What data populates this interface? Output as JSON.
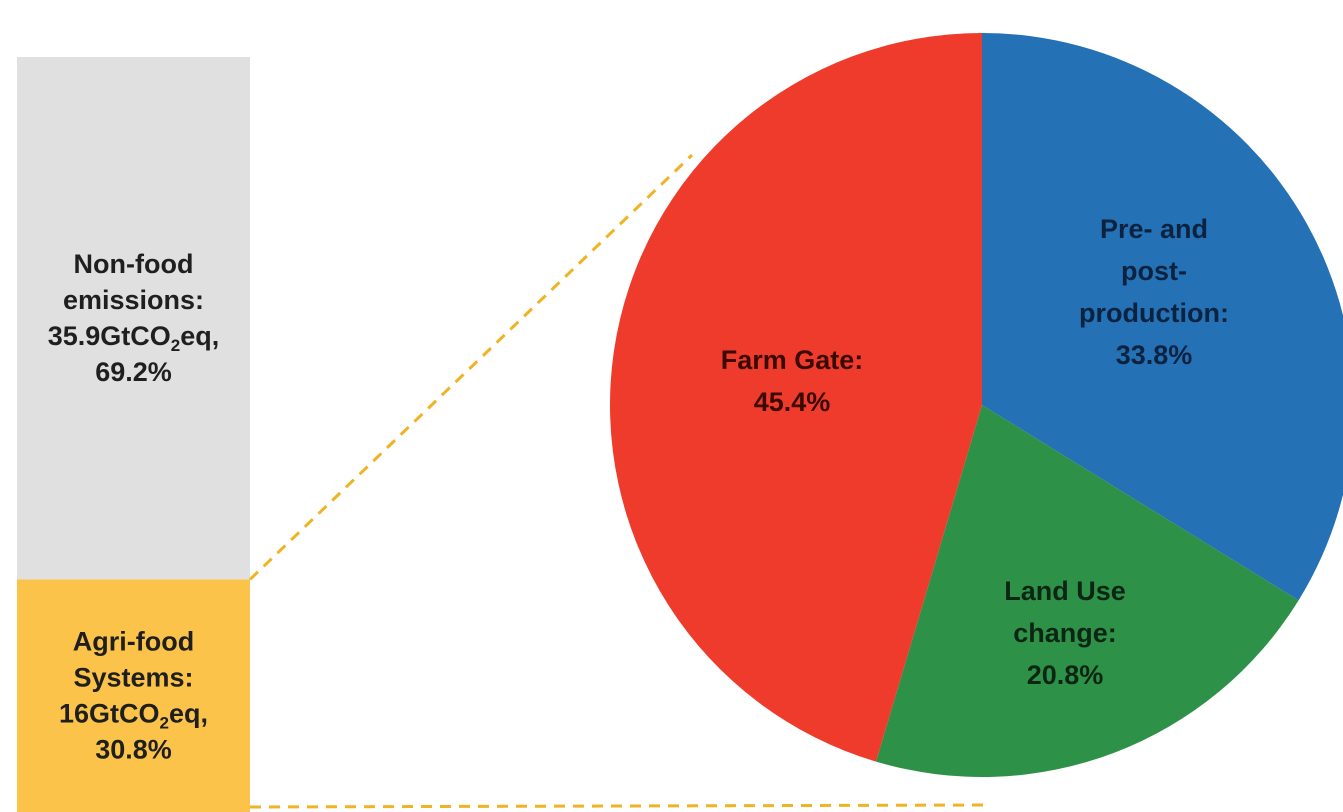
{
  "chart_data": [
    {
      "type": "bar",
      "stacked": true,
      "unit": "GtCO2eq",
      "segments": [
        {
          "name": "Non-food emissions",
          "value": 35.9,
          "percent": 69.2,
          "color": "#e0e0e0",
          "label_lines": [
            "Non-food",
            "emissions:",
            "35.9GtCO",
            "2",
            "eq,",
            "69.2%"
          ]
        },
        {
          "name": "Agri-food Systems",
          "value": 16,
          "percent": 30.8,
          "color": "#fbc34a",
          "label_lines": [
            "Agri-food",
            "Systems:",
            "16GtCO",
            "2",
            "eq,",
            "30.8%"
          ]
        }
      ]
    },
    {
      "type": "pie",
      "of_segment": "Agri-food Systems",
      "connector_color": "#f0b323",
      "slices": [
        {
          "name": "Pre- and post-production",
          "value": 33.8,
          "color": "#2471b5",
          "label_lines": [
            "Pre- and",
            "post-",
            "production:",
            "33.8%"
          ]
        },
        {
          "name": "Land Use change",
          "value": 20.8,
          "color": "#2e9148",
          "label_lines": [
            "Land Use",
            "change:",
            "20.8%"
          ]
        },
        {
          "name": "Farm Gate",
          "value": 45.4,
          "color": "#ee3b2b",
          "label_lines": [
            "Farm Gate:",
            "45.4%"
          ]
        }
      ]
    }
  ]
}
